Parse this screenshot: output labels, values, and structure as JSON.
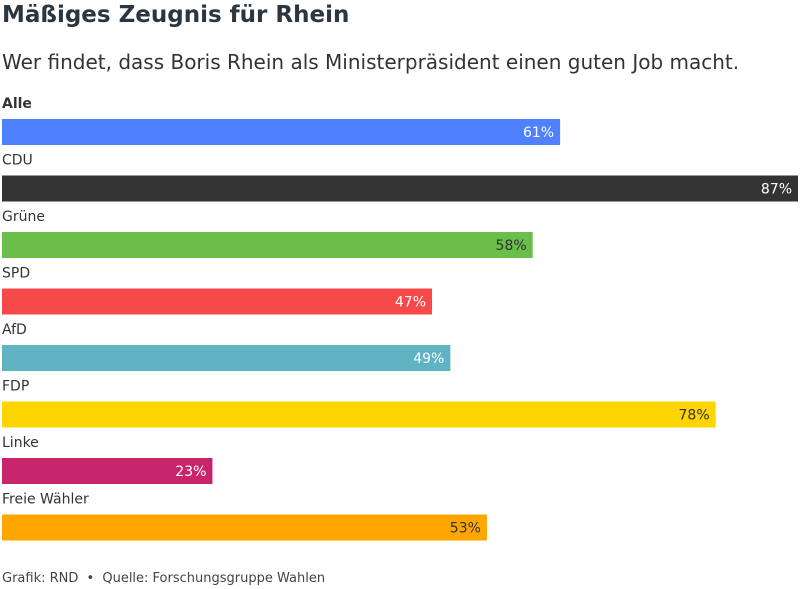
{
  "title": "Mäßiges Zeugnis für Rhein",
  "subtitle": "Wer findet, dass Boris Rhein als Ministerpräsident einen guten Job macht.",
  "footer": {
    "credit": "Grafik: RND",
    "separator": "•",
    "source": "Quelle: Forschungsgruppe Wahlen"
  },
  "chart_data": {
    "type": "bar",
    "orientation": "horizontal",
    "xlim": [
      0,
      87
    ],
    "value_suffix": "%",
    "categories": [
      "Alle",
      "CDU",
      "Grüne",
      "SPD",
      "AfD",
      "FDP",
      "Linke",
      "Freie Wähler"
    ],
    "values": [
      61,
      87,
      58,
      47,
      49,
      78,
      23,
      53
    ],
    "colors": [
      "#4f81ff",
      "#333333",
      "#6abf4b",
      "#f64a4a",
      "#5fb3c2",
      "#ffd500",
      "#c9256a",
      "#ffa600"
    ],
    "label_colors": [
      "#ffffff",
      "#ffffff",
      "#333333",
      "#ffffff",
      "#ffffff",
      "#333333",
      "#ffffff",
      "#333333"
    ],
    "bold_categories": [
      "Alle"
    ]
  }
}
